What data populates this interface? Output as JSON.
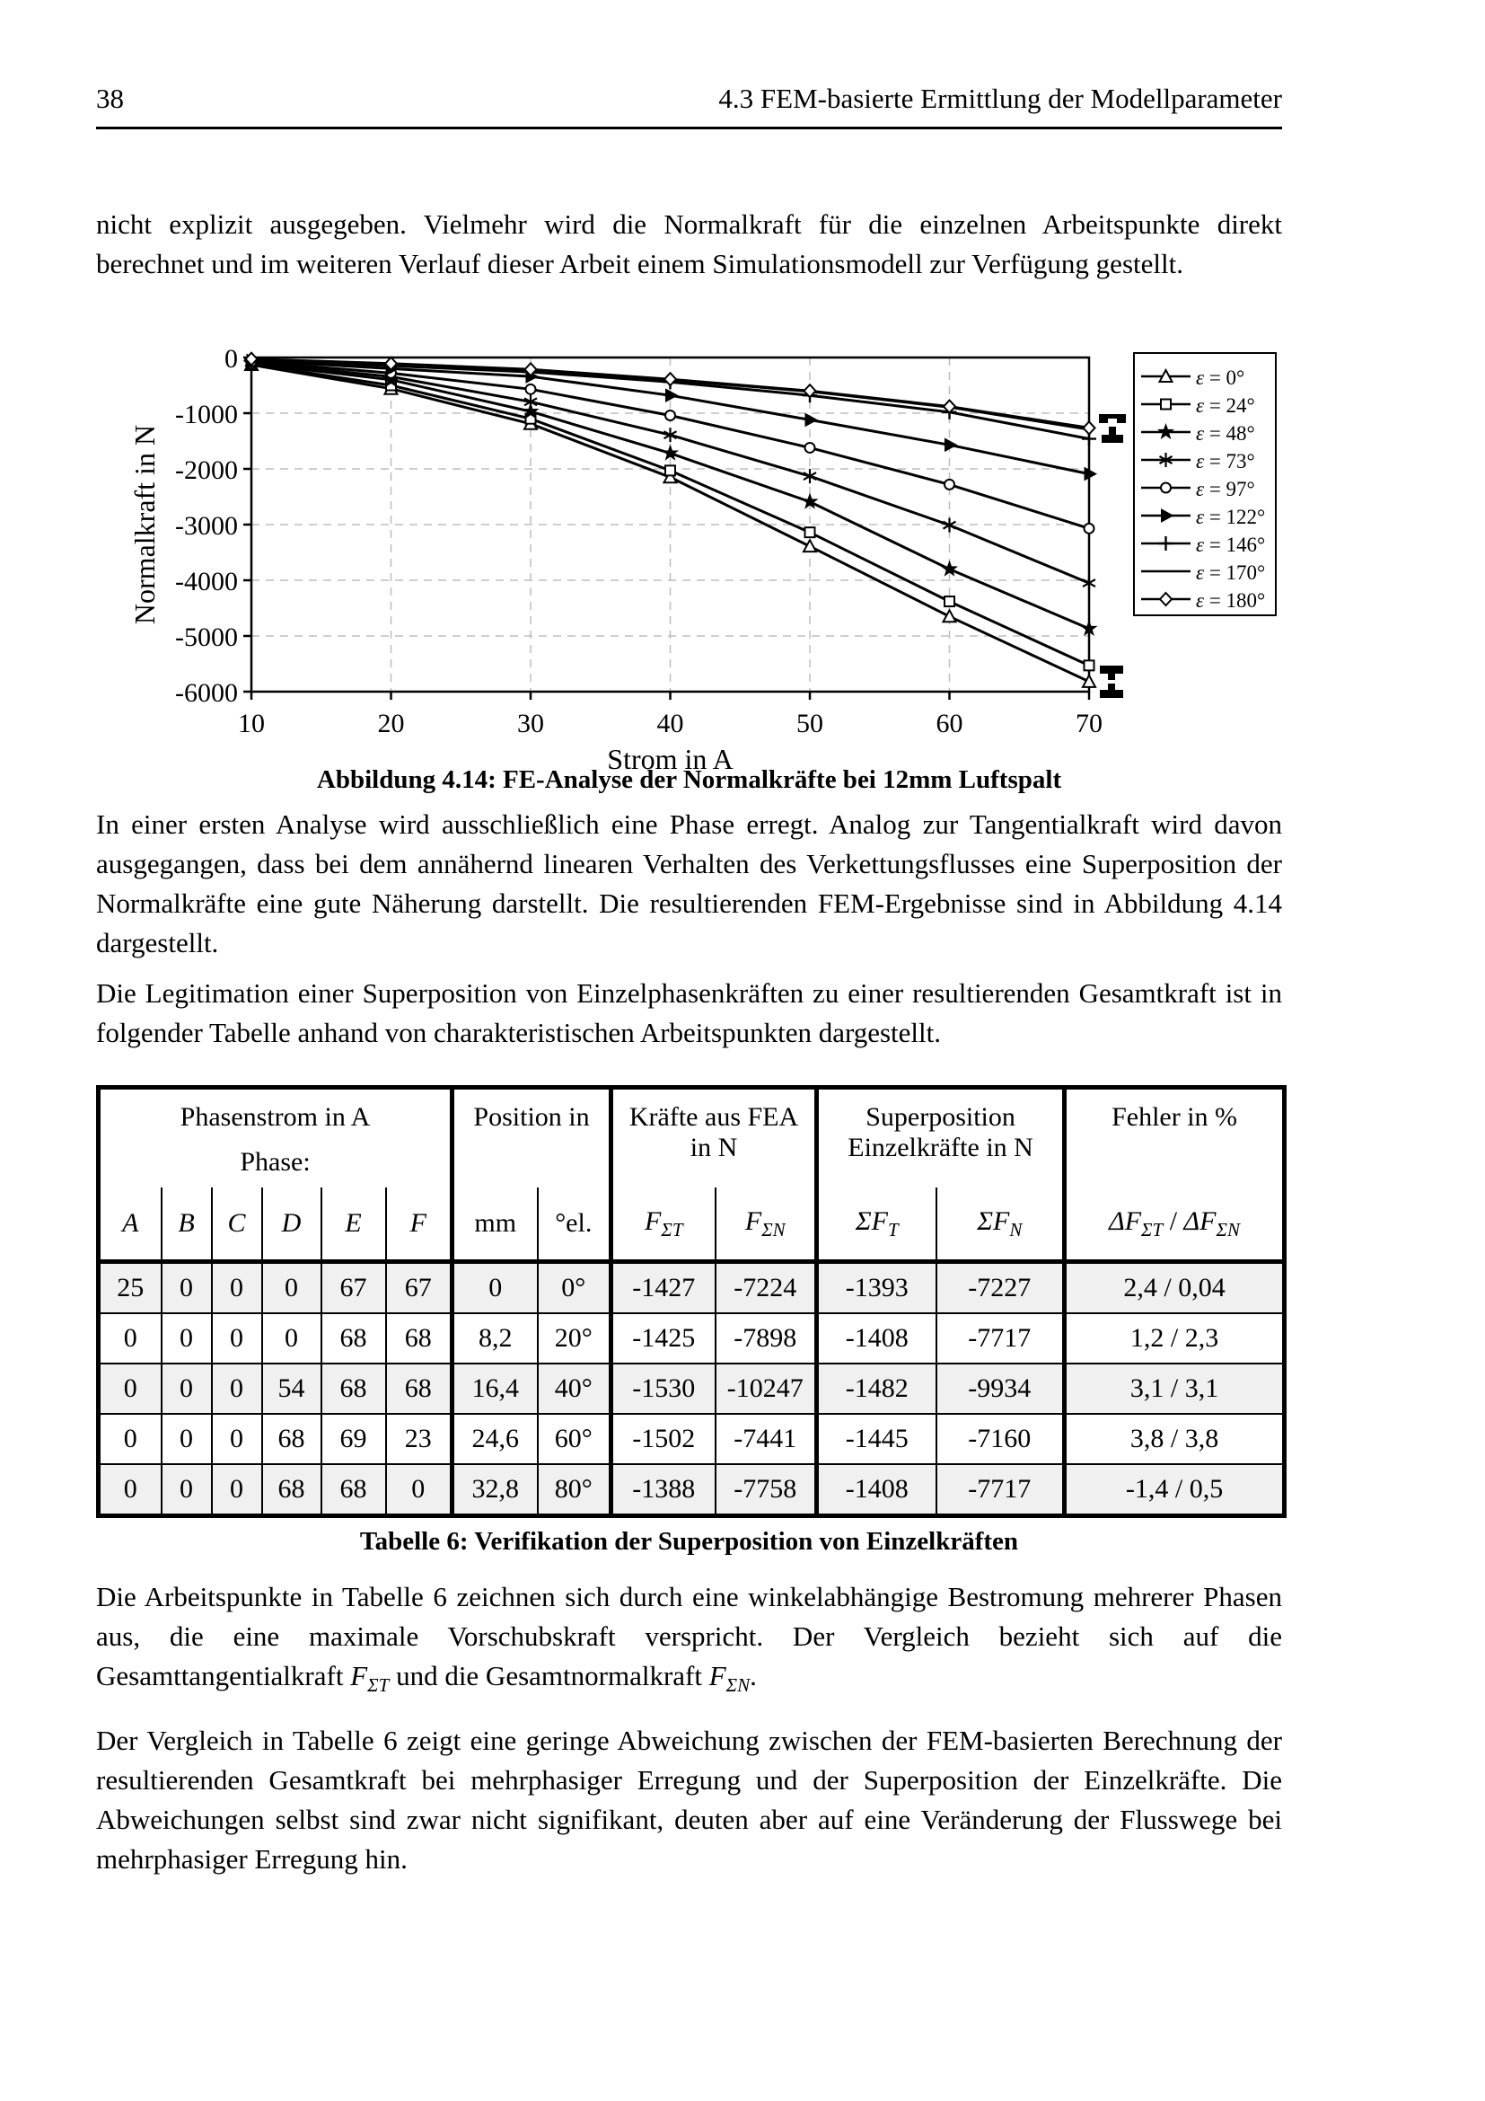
{
  "header": {
    "page_number": "38",
    "section_title": "4.3 FEM-basierte Ermittlung der Modellparameter"
  },
  "paragraphs": {
    "p1": "nicht explizit ausgegeben. Vielmehr wird die Normalkraft für die einzelnen Arbeitspunkte direkt berechnet und im weiteren Verlauf dieser Arbeit einem Simulationsmodell zur Verfügung gestellt.",
    "p2": "In einer ersten Analyse wird ausschließlich eine Phase erregt. Analog zur Tangentialkraft wird davon ausgegangen, dass bei dem annähernd linearen Verhalten des Verkettungsflusses eine Superposition der Normalkräfte eine gute Näherung darstellt. Die resultierenden FEM-Ergebnisse sind in Abbildung 4.14 dargestellt.",
    "p3": "Die Legitimation einer Superposition von Einzelphasenkräften zu einer resultierenden Gesamtkraft ist in folgender Tabelle anhand von charakteristischen Arbeitspunkten dargestellt.",
    "p4": {
      "text1": "Die Arbeitspunkte in Tabelle 6 zeichnen sich durch eine winkelabhängige Bestromung mehrerer Phasen aus, die eine maximale Vorschubskraft verspricht. Der Vergleich bezieht sich auf die Gesamttangentialkraft ",
      "f1": "F",
      "f1_sub": "ΣT",
      "text2": " und die Gesamtnormalkraft ",
      "f2": "F",
      "f2_sub": "ΣN",
      "text3": "."
    },
    "p5": "Der Vergleich in Tabelle 6 zeigt eine geringe Abweichung zwischen der FEM-basierten Berechnung der resultierenden Gesamtkraft bei mehrphasiger Erregung und der Superposition der Einzelkräfte. Die Abweichungen selbst sind zwar nicht signifikant, deuten aber auf eine Veränderung der Flusswege bei mehrphasiger Erregung hin."
  },
  "figure": {
    "caption": "Abbildung 4.14: FE-Analyse der Normalkräfte bei 12mm Luftspalt"
  },
  "chart_data": {
    "type": "line",
    "title": "",
    "xlabel": "Strom in A",
    "ylabel": "Normalkraft in N",
    "xlim": [
      10,
      70
    ],
    "ylim": [
      -6000,
      0
    ],
    "xticks": [
      10,
      20,
      30,
      40,
      50,
      60,
      70
    ],
    "yticks": [
      0,
      -1000,
      -2000,
      -3000,
      -4000,
      -5000,
      -6000
    ],
    "grid": "dashed",
    "grid_color": "#bdbdbd",
    "line_color": "#000000",
    "legend_position": "right-outside",
    "x": [
      10,
      20,
      30,
      40,
      50,
      60,
      70
    ],
    "series": [
      {
        "name": "ε = 0°",
        "marker": "triangle-up",
        "values": [
          -130,
          -560,
          -1190,
          -2150,
          -3390,
          -4650,
          -5820
        ]
      },
      {
        "name": "ε = 24°",
        "marker": "square",
        "values": [
          -120,
          -500,
          -1100,
          -2030,
          -3140,
          -4380,
          -5530
        ]
      },
      {
        "name": "ε = 48°",
        "marker": "star",
        "values": [
          -105,
          -400,
          -970,
          -1720,
          -2590,
          -3800,
          -4870
        ]
      },
      {
        "name": "ε = 73°",
        "marker": "asterisk",
        "values": [
          -90,
          -345,
          -795,
          -1390,
          -2130,
          -3010,
          -4050
        ]
      },
      {
        "name": "ε = 97°",
        "marker": "circle",
        "values": [
          -75,
          -280,
          -570,
          -1040,
          -1620,
          -2280,
          -3070
        ]
      },
      {
        "name": "ε = 122°",
        "marker": "triangle-right",
        "values": [
          -55,
          -200,
          -340,
          -680,
          -1120,
          -1570,
          -2090
        ]
      },
      {
        "name": "ε = 146°",
        "marker": "plus",
        "values": [
          -40,
          -150,
          -260,
          -440,
          -680,
          -980,
          -1460
        ]
      },
      {
        "name": "ε = 170°",
        "marker": "none",
        "values": [
          -30,
          -115,
          -220,
          -400,
          -610,
          -890,
          -1290
        ]
      },
      {
        "name": "ε = 180°",
        "marker": "diamond",
        "values": [
          -28,
          -110,
          -215,
          -390,
          -600,
          -880,
          -1265
        ]
      }
    ]
  },
  "table": {
    "caption": "Tabelle 6: Verifikation der Superposition von Einzelkräften",
    "row_shade": "#f0f0f0",
    "groups": [
      {
        "lines": [
          "Phasenstrom in A",
          "Phase:"
        ],
        "span": 6
      },
      {
        "lines": [
          "Position in"
        ],
        "span": 2
      },
      {
        "lines": [
          "Kräfte aus FEA",
          "in N"
        ],
        "span": 2
      },
      {
        "lines": [
          "Superposition",
          "Einzelkräfte in N"
        ],
        "span": 2
      },
      {
        "lines": [
          "Fehler in %"
        ],
        "span": 1
      }
    ],
    "subheaders": [
      {
        "parts": [
          {
            "t": "A",
            "i": 1
          }
        ]
      },
      {
        "parts": [
          {
            "t": "B",
            "i": 1
          }
        ]
      },
      {
        "parts": [
          {
            "t": "C",
            "i": 1
          }
        ]
      },
      {
        "parts": [
          {
            "t": "D",
            "i": 1
          }
        ]
      },
      {
        "parts": [
          {
            "t": "E",
            "i": 1
          }
        ]
      },
      {
        "parts": [
          {
            "t": "F",
            "i": 1
          }
        ]
      },
      {
        "parts": [
          {
            "t": "mm"
          }
        ]
      },
      {
        "parts": [
          {
            "t": "°el."
          }
        ]
      },
      {
        "parts": [
          {
            "t": "F",
            "i": 1
          },
          {
            "t": "ΣT",
            "i": 1,
            "sub": 1
          }
        ]
      },
      {
        "parts": [
          {
            "t": "F",
            "i": 1
          },
          {
            "t": "ΣN",
            "i": 1,
            "sub": 1
          }
        ]
      },
      {
        "parts": [
          {
            "t": "ΣF",
            "i": 1
          },
          {
            "t": "T",
            "i": 1,
            "sub": 1
          }
        ]
      },
      {
        "parts": [
          {
            "t": "ΣF",
            "i": 1
          },
          {
            "t": "N",
            "i": 1,
            "sub": 1
          }
        ]
      },
      {
        "parts": [
          {
            "t": "ΔF",
            "i": 1
          },
          {
            "t": "ΣT",
            "i": 1,
            "sub": 1
          },
          {
            "t": " / "
          },
          {
            "t": "ΔF",
            "i": 1
          },
          {
            "t": "ΣN",
            "i": 1,
            "sub": 1
          }
        ]
      }
    ],
    "rows": [
      [
        "25",
        "0",
        "0",
        "0",
        "67",
        "67",
        "0",
        "0°",
        "-1427",
        "-7224",
        "-1393",
        "-7227",
        "2,4 / 0,04"
      ],
      [
        "0",
        "0",
        "0",
        "0",
        "68",
        "68",
        "8,2",
        "20°",
        "-1425",
        "-7898",
        "-1408",
        "-7717",
        "1,2 / 2,3"
      ],
      [
        "0",
        "0",
        "0",
        "54",
        "68",
        "68",
        "16,4",
        "40°",
        "-1530",
        "-10247",
        "-1482",
        "-9934",
        "3,1 / 3,1"
      ],
      [
        "0",
        "0",
        "0",
        "68",
        "69",
        "23",
        "24,6",
        "60°",
        "-1502",
        "-7441",
        "-1445",
        "-7160",
        "3,8 / 3,8"
      ],
      [
        "0",
        "0",
        "0",
        "68",
        "68",
        "0",
        "32,8",
        "80°",
        "-1388",
        "-7758",
        "-1408",
        "-7717",
        "-1,4 / 0,5"
      ]
    ]
  }
}
